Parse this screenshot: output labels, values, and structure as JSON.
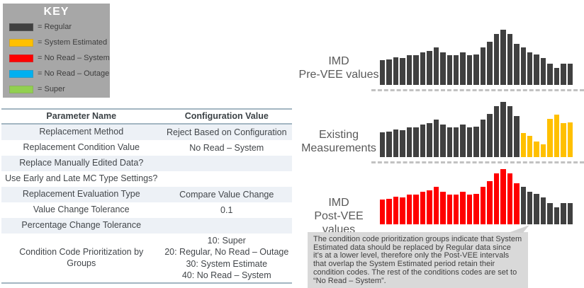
{
  "key": {
    "title": "KEY",
    "items": [
      {
        "condition": "Regular",
        "label": "= Regular",
        "color": "#404040"
      },
      {
        "condition": "System Estimated",
        "label": "= System Estimated",
        "color": "#FFC000"
      },
      {
        "condition": "No Read – System",
        "label": "= No Read – System",
        "color": "#FF0000"
      },
      {
        "condition": "No Read – Outage",
        "label": "= No Read – Outage",
        "color": "#00B0F0"
      },
      {
        "condition": "Super",
        "label": "= Super",
        "color": "#92D050"
      }
    ]
  },
  "table": {
    "headers": [
      "Parameter Name",
      "Configuration Value"
    ],
    "rows": [
      {
        "param": "Replacement Method",
        "value": "Reject Based on Configuration"
      },
      {
        "param": "Replacement Condition Value",
        "value": "No Read – System"
      },
      {
        "param": "Replace Manually Edited Data?",
        "value": ""
      },
      {
        "param": "Use Early and Late MC Type Settings?",
        "value": ""
      },
      {
        "param": "Replacement Evaluation Type",
        "value": "Compare Value Change"
      },
      {
        "param": "Value Change Tolerance",
        "value": "0.1"
      },
      {
        "param": "Percentage Change Tolerance",
        "value": ""
      },
      {
        "param": "Condition Code Prioritization by Groups",
        "value": "10: Super\n20: Regular, No Read – Outage\n30: System Estimate\n40: No Read – System"
      }
    ]
  },
  "chart_data": [
    {
      "type": "bar",
      "label_line1": "IMD",
      "label_line2": "Pre-VEE values",
      "ymax": 80,
      "values": [
        35,
        36,
        39,
        38,
        42,
        42,
        46,
        48,
        53,
        46,
        42,
        42,
        46,
        42,
        43,
        53,
        61,
        72,
        78,
        72,
        58,
        53,
        46,
        43,
        38,
        30,
        24,
        30,
        30
      ],
      "segments": [
        {
          "count": 29,
          "condition": "Regular",
          "color": "#404040"
        }
      ]
    },
    {
      "type": "bar",
      "label_line1": "Existing",
      "label_line2": "Measurements",
      "ymax": 80,
      "values": [
        35,
        36,
        39,
        38,
        42,
        42,
        46,
        48,
        53,
        46,
        42,
        42,
        46,
        42,
        43,
        53,
        61,
        72,
        78,
        72,
        58,
        34,
        30,
        22,
        18,
        54,
        60,
        48,
        49
      ],
      "segments": [
        {
          "count": 21,
          "condition": "Regular",
          "color": "#404040"
        },
        {
          "count": 8,
          "condition": "System Estimated",
          "color": "#FFC000"
        }
      ]
    },
    {
      "type": "bar",
      "label_line1": "IMD",
      "label_line2": "Post-VEE values",
      "ymax": 80,
      "values": [
        35,
        36,
        39,
        38,
        42,
        42,
        46,
        48,
        53,
        46,
        42,
        42,
        46,
        42,
        43,
        53,
        61,
        72,
        78,
        72,
        58,
        53,
        46,
        43,
        38,
        30,
        24,
        30,
        30
      ],
      "segments": [
        {
          "count": 21,
          "condition": "No Read – System",
          "color": "#FF0000"
        },
        {
          "count": 8,
          "condition": "Regular",
          "color": "#404040"
        }
      ]
    }
  ],
  "note": {
    "text": "The condition code prioritization groups indicate that System Estimated data should be replaced by Regular data since it’s at a lower level, therefore only the Post-VEE intervals that overlap the System Estimated period retain their condition codes.  The rest of the conditions codes are set to “No Read – System”."
  }
}
